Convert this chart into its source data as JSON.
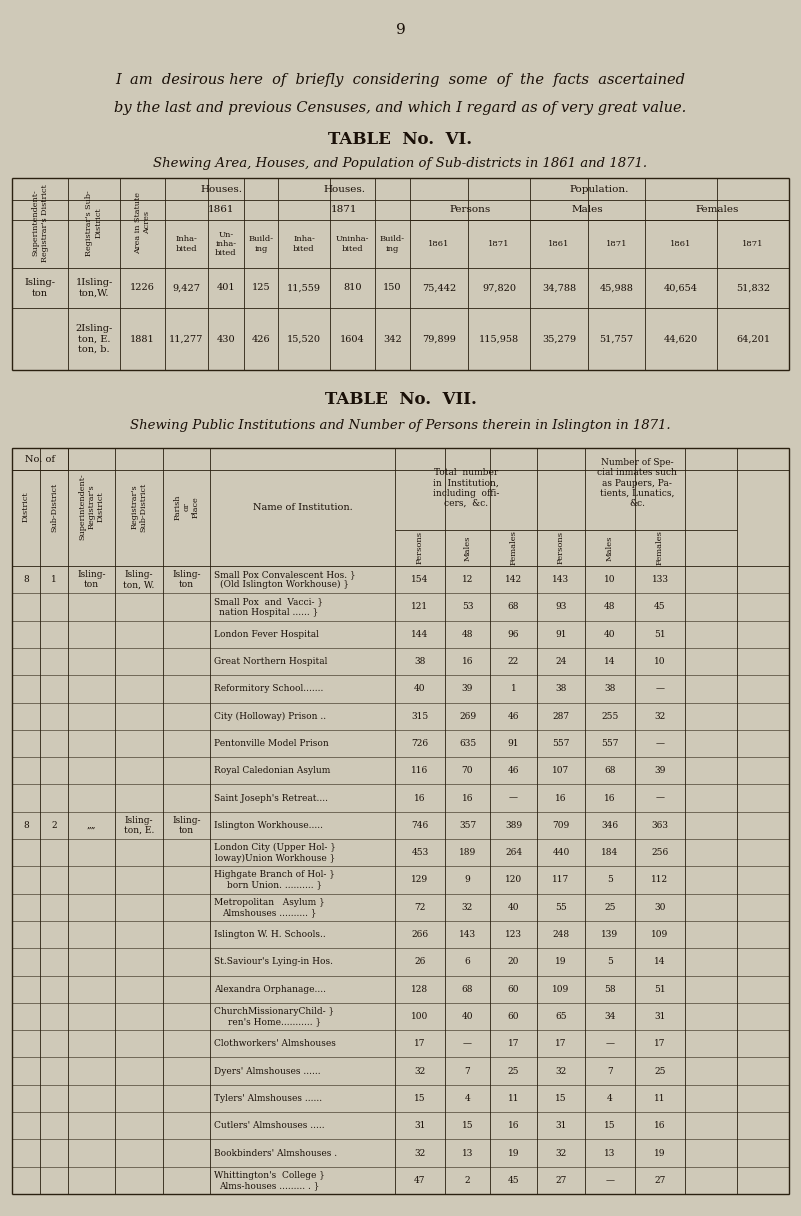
{
  "page_num": "9",
  "bg_color": "#cfc9b8",
  "text_color": "#1a1008",
  "intro_line1": "I  am  desirous here  of  briefly  considering  some  of  the  facts  ascertained",
  "intro_line2": "by the last and previous Censuses, and which I regard as of very great value.",
  "t6_title": "TABLE  No.  VI.",
  "t6_subtitle": "Shewing Area, Houses, and Population of Sub-districts in 1861 and 1871.",
  "t7_title": "TABLE  No.  VII.",
  "t7_subtitle": "Shewing Public Institutions and Number of Persons therein in Islington in 1871.",
  "t6_rows": [
    [
      "Isling-\nton",
      "1Isling-\nton,W.",
      "1226",
      "9,427",
      "401",
      "125",
      "11,559",
      "810",
      "150",
      "75,442",
      "97,820",
      "34,788",
      "45,988",
      "40,654",
      "51,832"
    ],
    [
      "",
      "2Isling-\nton, E.\nton, b.",
      "1881",
      "11,277",
      "430",
      "426",
      "15,520",
      "1604",
      "342",
      "79,899",
      "115,958",
      "35,279",
      "51,757",
      "44,620",
      "64,201"
    ]
  ],
  "t7_rows": [
    [
      "8",
      "1",
      "Isling-\nton",
      "Isling-\nton, W.",
      "Isling-\nton",
      "Small Pox Convalescent Hos. }\n(Old Islington Workhouse) }",
      "154",
      "12",
      "142",
      "143",
      "10",
      "133"
    ],
    [
      "",
      "",
      "",
      "",
      "",
      "Small Pox  and  Vacci- }\nnation Hospital ...... }",
      "121",
      "53",
      "68",
      "93",
      "48",
      "45"
    ],
    [
      "",
      "",
      "",
      "",
      "",
      "London Fever Hospital",
      "144",
      "48",
      "96",
      "91",
      "40",
      "51"
    ],
    [
      "",
      "",
      "",
      "",
      "",
      "Great Northern Hospital",
      "38",
      "16",
      "22",
      "24",
      "14",
      "10"
    ],
    [
      "",
      "",
      "",
      "",
      "",
      "Reformitory School.......",
      "40",
      "39",
      "1",
      "38",
      "38",
      "—"
    ],
    [
      "",
      "",
      "",
      "",
      "",
      "City (Holloway) Prison ..",
      "315",
      "269",
      "46",
      "287",
      "255",
      "32"
    ],
    [
      "",
      "",
      "",
      "",
      "",
      "Pentonville Model Prison",
      "726",
      "635",
      "91",
      "557",
      "557",
      "—"
    ],
    [
      "",
      "",
      "",
      "",
      "",
      "Royal Caledonian Asylum",
      "116",
      "70",
      "46",
      "107",
      "68",
      "39"
    ],
    [
      "",
      "",
      "",
      "",
      "",
      "Saint Joseph's Retreat....",
      "16",
      "16",
      "—",
      "16",
      "16",
      "—"
    ],
    [
      "8",
      "2",
      "„„",
      "Isling-\nton, E.",
      "Isling-\nton",
      "Islington Workhouse.....",
      "746",
      "357",
      "389",
      "709",
      "346",
      "363"
    ],
    [
      "",
      "",
      "",
      "",
      "",
      "London City (Upper Hol- }\nloway)Union Workhouse }",
      "453",
      "189",
      "264",
      "440",
      "184",
      "256"
    ],
    [
      "",
      "",
      "",
      "",
      "",
      "Highgate Branch of Hol- }\nborn Union. .......... }",
      "129",
      "9",
      "120",
      "117",
      "5",
      "112"
    ],
    [
      "",
      "",
      "",
      "",
      "",
      "Metropolitan   Asylum }\nAlmshouses .......... }",
      "72",
      "32",
      "40",
      "55",
      "25",
      "30"
    ],
    [
      "",
      "",
      "",
      "",
      "",
      "Islington W. H. Schools..",
      "266",
      "143",
      "123",
      "248",
      "139",
      "109"
    ],
    [
      "",
      "",
      "",
      "",
      "",
      "St.Saviour's Lying-in Hos.",
      "26",
      "6",
      "20",
      "19",
      "5",
      "14"
    ],
    [
      "",
      "",
      "",
      "",
      "",
      "Alexandra Orphanage....",
      "128",
      "68",
      "60",
      "109",
      "58",
      "51"
    ],
    [
      "",
      "",
      "",
      "",
      "",
      "ChurchMissionaryChild- }\nren's Home........... }",
      "100",
      "40",
      "60",
      "65",
      "34",
      "31"
    ],
    [
      "",
      "",
      "",
      "",
      "",
      "Clothworkers' Almshouses",
      "17",
      "—",
      "17",
      "17",
      "—",
      "17"
    ],
    [
      "",
      "",
      "",
      "",
      "",
      "Dyers' Almshouses ......",
      "32",
      "7",
      "25",
      "32",
      "7",
      "25"
    ],
    [
      "",
      "",
      "",
      "",
      "",
      "Tylers' Almshouses ......",
      "15",
      "4",
      "11",
      "15",
      "4",
      "11"
    ],
    [
      "",
      "",
      "",
      "",
      "",
      "Cutlers' Almshouses .....",
      "31",
      "15",
      "16",
      "31",
      "15",
      "16"
    ],
    [
      "",
      "",
      "",
      "",
      "",
      "Bookbinders' Almshouses .",
      "32",
      "13",
      "19",
      "32",
      "13",
      "19"
    ],
    [
      "",
      "",
      "",
      "",
      "",
      "Whittington's  College }\nAlms-houses ......... . }",
      "47",
      "2",
      "45",
      "27",
      "—",
      "27"
    ]
  ]
}
